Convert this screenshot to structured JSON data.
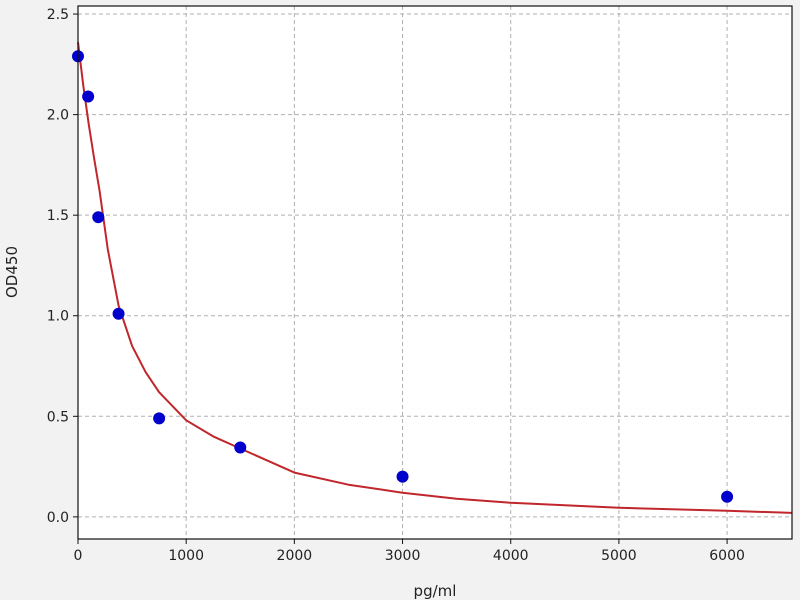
{
  "chart_data": {
    "type": "scatter",
    "title": "",
    "xlabel": "pg/ml",
    "ylabel": "OD450",
    "xlim": [
      0,
      6600
    ],
    "ylim": [
      -0.11,
      2.54
    ],
    "grid": true,
    "x_ticks": [
      "0",
      "1000",
      "2000",
      "3000",
      "4000",
      "5000",
      "6000"
    ],
    "y_ticks": [
      "0.0",
      "0.5",
      "1.0",
      "1.5",
      "2.0",
      "2.5"
    ],
    "points": {
      "color": "#0000cc",
      "x": [
        0,
        93.75,
        187.5,
        375,
        750,
        1500,
        3000,
        6000
      ],
      "y": [
        2.29,
        2.09,
        1.49,
        1.01,
        0.49,
        0.345,
        0.2,
        0.1
      ]
    },
    "fit_curve": {
      "color": "#c0262b",
      "x": [
        0,
        25,
        50,
        100,
        150,
        200,
        275,
        375,
        500,
        625,
        750,
        1000,
        1250,
        1500,
        2000,
        2500,
        3000,
        3500,
        4000,
        5000,
        6000,
        6600
      ],
      "y": [
        2.36,
        2.25,
        2.14,
        1.95,
        1.78,
        1.62,
        1.33,
        1.05,
        0.85,
        0.72,
        0.62,
        0.48,
        0.4,
        0.34,
        0.22,
        0.16,
        0.12,
        0.09,
        0.07,
        0.045,
        0.03,
        0.02
      ]
    }
  }
}
